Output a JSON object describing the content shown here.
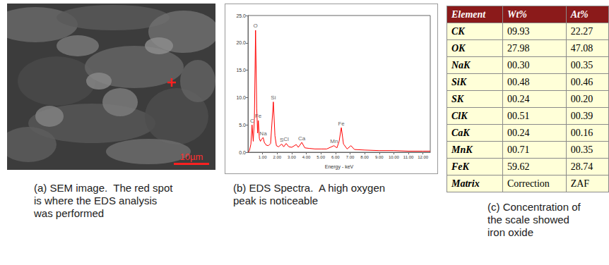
{
  "sem_image": {
    "scale_bar": "10µm"
  },
  "chart_data": {
    "type": "line",
    "x_label": "Energy - keV",
    "color": "#ff0000",
    "grid": false,
    "x": [
      0.0,
      0.1,
      0.2,
      0.28,
      0.36,
      0.44,
      0.52,
      0.6,
      0.66,
      0.71,
      0.78,
      0.85,
      0.94,
      1.04,
      1.12,
      1.25,
      1.4,
      1.55,
      1.74,
      1.85,
      1.95,
      2.1,
      2.31,
      2.45,
      2.62,
      2.8,
      3.0,
      3.31,
      3.45,
      3.69,
      3.9,
      4.2,
      4.6,
      5.0,
      5.4,
      5.9,
      6.1,
      6.25,
      6.4,
      6.55,
      6.8,
      7.06,
      7.3,
      8.0,
      9.0,
      10.0,
      11.0,
      12.0,
      12.5
    ],
    "values": [
      0.0,
      0.3,
      1.5,
      5.0,
      2.0,
      6.0,
      22.3,
      8.0,
      3.5,
      5.8,
      2.5,
      2.0,
      2.4,
      2.7,
      1.8,
      1.3,
      1.2,
      1.6,
      9.2,
      3.0,
      1.2,
      1.0,
      1.5,
      1.0,
      1.6,
      1.0,
      0.9,
      1.4,
      0.9,
      1.8,
      0.8,
      0.7,
      0.6,
      0.6,
      0.6,
      1.2,
      0.8,
      2.0,
      4.5,
      1.5,
      0.6,
      1.2,
      0.5,
      0.4,
      0.3,
      0.3,
      0.2,
      0.2,
      0.2
    ],
    "xlim": [
      0,
      12.5
    ],
    "xticks": [
      {
        "value": 1,
        "label": "1.00"
      },
      {
        "value": 2,
        "label": "2.00"
      },
      {
        "value": 3,
        "label": "3.00"
      },
      {
        "value": 4,
        "label": "4.00"
      },
      {
        "value": 5,
        "label": "5.00"
      },
      {
        "value": 6,
        "label": "6.00"
      },
      {
        "value": 7,
        "label": "7.00"
      },
      {
        "value": 8,
        "label": "8.00"
      },
      {
        "value": 9,
        "label": "9.00"
      },
      {
        "value": 10,
        "label": "10.00"
      },
      {
        "value": 11,
        "label": "11.00"
      },
      {
        "value": 12,
        "label": "12.00"
      }
    ],
    "ylim": [
      0,
      25
    ],
    "yticks": [
      {
        "value": 0,
        "label": "0.0"
      },
      {
        "value": 5,
        "label": "5.0"
      },
      {
        "value": 10,
        "label": "10.0"
      },
      {
        "value": 15,
        "label": "15.0"
      },
      {
        "value": 20,
        "label": "20.0"
      },
      {
        "value": 25,
        "label": "25.0"
      }
    ],
    "annotations": [
      {
        "label": "C",
        "x": 0.28,
        "y": 5.0
      },
      {
        "label": "O",
        "x": 0.52,
        "y": 22.3
      },
      {
        "label": "Fe",
        "x": 0.71,
        "y": 5.8
      },
      {
        "label": "Na",
        "x": 1.04,
        "y": 2.7
      },
      {
        "label": "Si",
        "x": 1.74,
        "y": 9.2
      },
      {
        "label": "S",
        "x": 2.31,
        "y": 1.5
      },
      {
        "label": "Cl",
        "x": 2.62,
        "y": 1.6
      },
      {
        "label": "Ca",
        "x": 3.69,
        "y": 1.8
      },
      {
        "label": "Mn",
        "x": 5.9,
        "y": 1.2
      },
      {
        "label": "Fe",
        "x": 6.4,
        "y": 4.5
      }
    ]
  },
  "table": {
    "header": [
      "Element",
      "Wt%",
      "At%"
    ],
    "rows": [
      [
        "CK",
        "09.93",
        "22.27"
      ],
      [
        "OK",
        "27.98",
        "47.08"
      ],
      [
        "NaK",
        "00.30",
        "00.35"
      ],
      [
        "SiK",
        "00.48",
        "00.46"
      ],
      [
        "SK",
        "00.24",
        "00.20"
      ],
      [
        "ClK",
        "00.51",
        "00.39"
      ],
      [
        "CaK",
        "00.24",
        "00.16"
      ],
      [
        "MnK",
        "00.71",
        "00.35"
      ],
      [
        "FeK",
        "59.62",
        "28.74"
      ]
    ],
    "footer": [
      "Matrix",
      "Correction",
      "ZAF"
    ]
  },
  "captions": [
    "(a) SEM image.  The red spot is where the EDS analysis was performed",
    "(b) EDS Spectra.  A high oxygen peak is noticeable",
    "(c) Concentration of the scale showed iron oxide"
  ]
}
